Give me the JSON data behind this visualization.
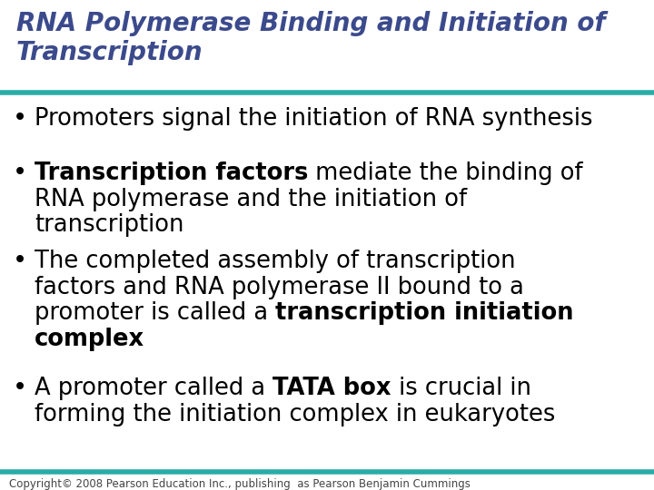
{
  "title_line1": "RNA Polymerase Binding and Initiation of",
  "title_line2": "Transcription",
  "title_color": "#3B4A8C",
  "line_color": "#2AACA8",
  "background_color": "#FFFFFF",
  "bullet_color": "#000000",
  "title_fontsize": 20,
  "bullet_fontsize": 18.5,
  "copyright": "Copyright© 2008 Pearson Education Inc., publishing  as Pearson Benjamin Cummings",
  "copyright_fontsize": 8.5,
  "copyright_color": "#444444",
  "bullet_items": [
    {
      "lines": [
        [
          [
            "Promoters signal the initiation of RNA synthesis",
            false
          ]
        ]
      ]
    },
    {
      "lines": [
        [
          [
            "Transcription factors",
            true
          ],
          [
            " mediate the binding of",
            false
          ]
        ],
        [
          [
            "RNA polymerase and the initiation of",
            false
          ]
        ],
        [
          [
            "transcription",
            false
          ]
        ]
      ]
    },
    {
      "lines": [
        [
          [
            "The completed assembly of transcription",
            false
          ]
        ],
        [
          [
            "factors and RNA polymerase II bound to a",
            false
          ]
        ],
        [
          [
            "promoter is called a ",
            false
          ],
          [
            "transcription initiation",
            true
          ]
        ],
        [
          [
            "complex",
            true
          ]
        ]
      ]
    },
    {
      "lines": [
        [
          [
            "A promoter called a ",
            false
          ],
          [
            "TATA box",
            true
          ],
          [
            " is crucial in",
            false
          ]
        ],
        [
          [
            "forming the initiation complex in eukaryotes",
            false
          ]
        ]
      ]
    }
  ]
}
